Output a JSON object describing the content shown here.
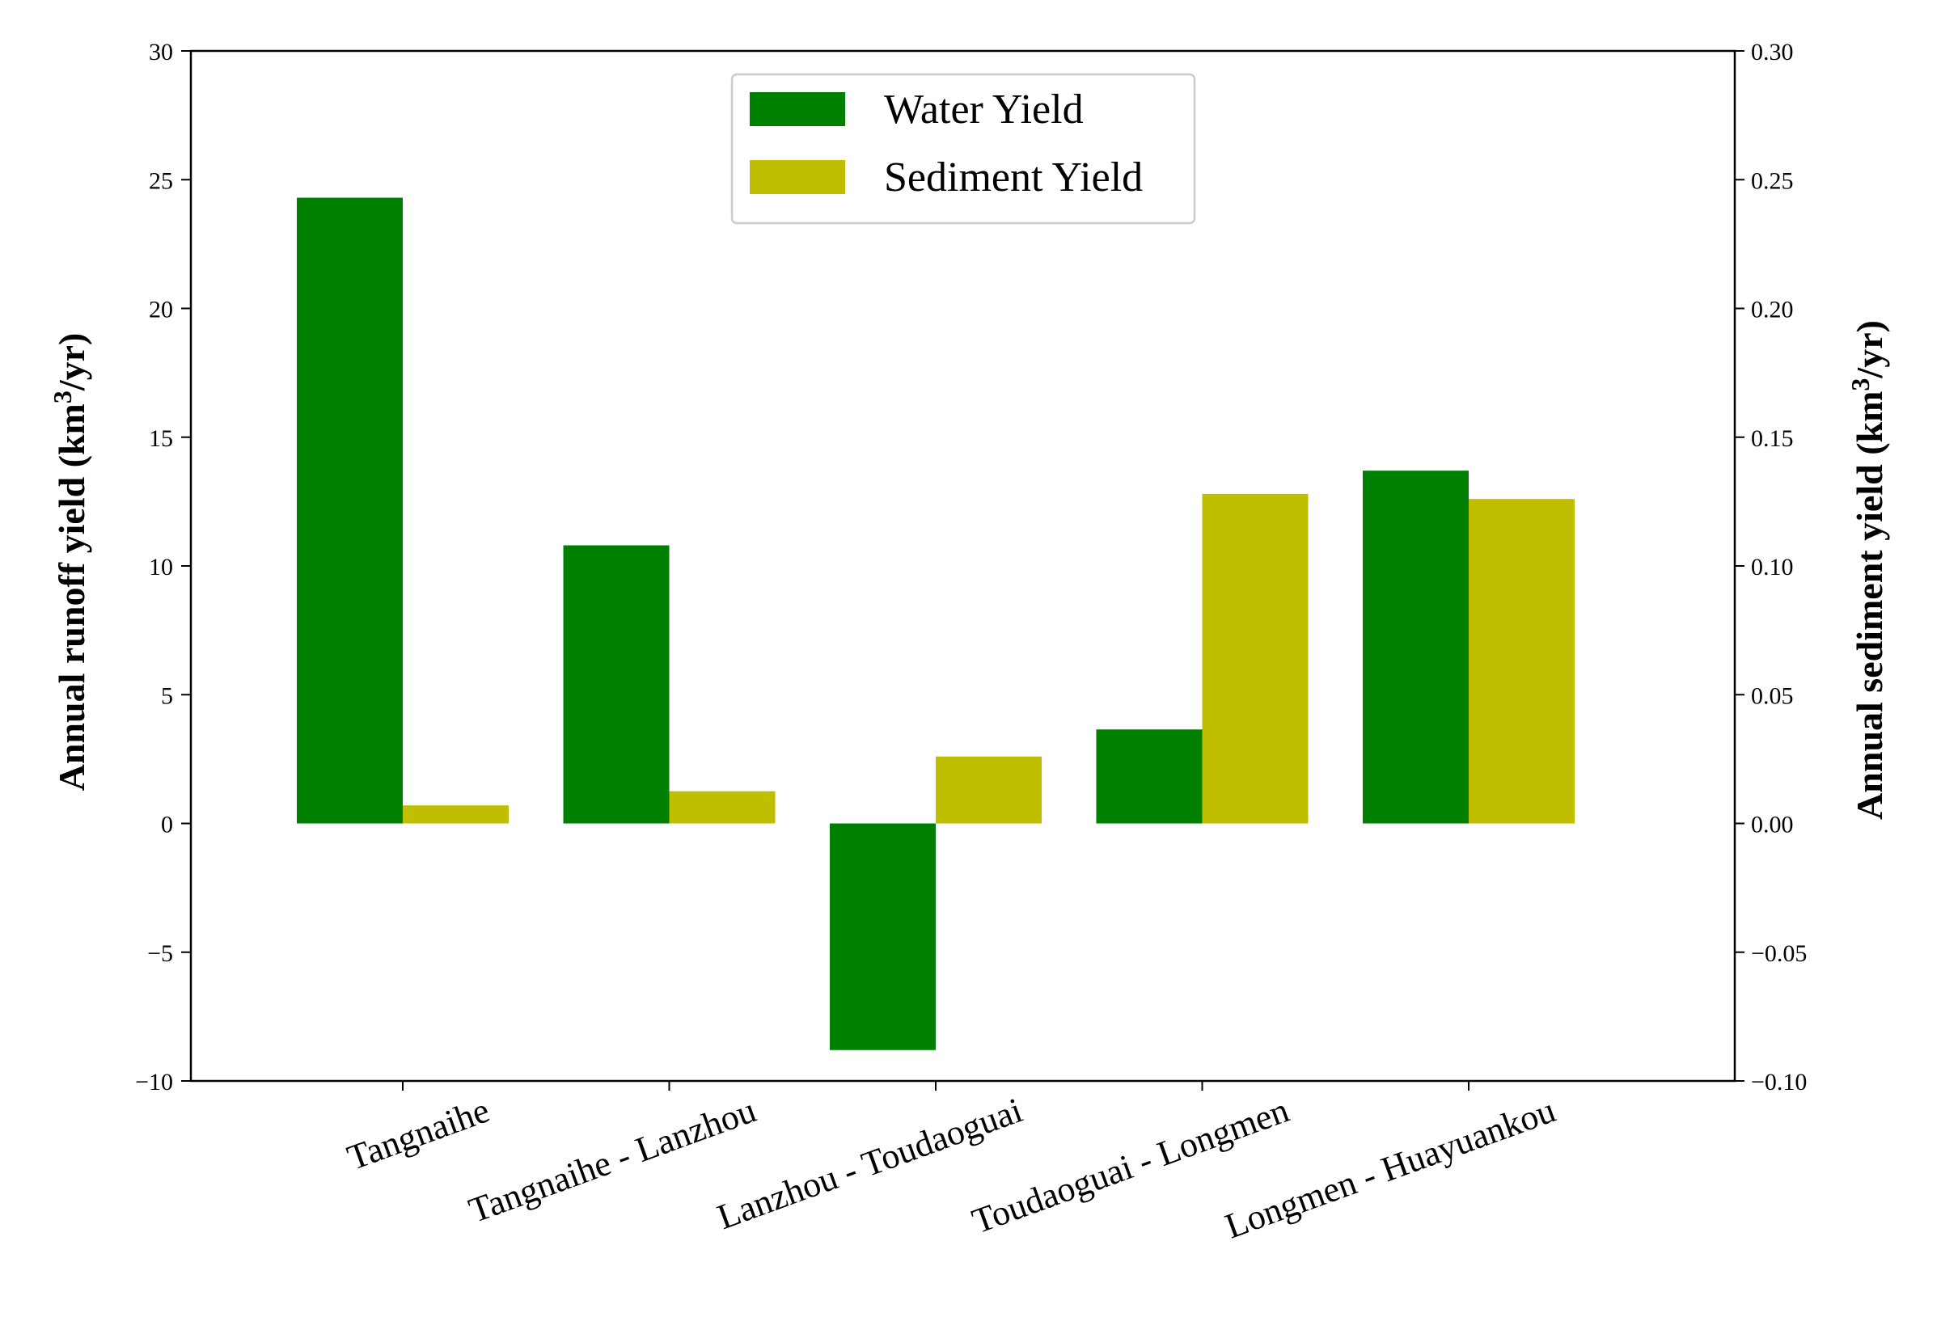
{
  "chart_data": {
    "type": "bar",
    "categories": [
      "Tangnaihe",
      "Tangnaihe - Lanzhou",
      "Lanzhou - Toudaoguai",
      "Toudaoguai - Longmen",
      "Longmen - Huayuankou"
    ],
    "series": [
      {
        "name": "Water Yield",
        "axis": "left",
        "color": "#008000",
        "values": [
          24.3,
          10.8,
          -8.8,
          3.65,
          13.7
        ]
      },
      {
        "name": "Sediment Yield",
        "axis": "right",
        "color": "#bfbf00",
        "values": [
          0.007,
          0.0125,
          0.026,
          0.128,
          0.126
        ]
      }
    ],
    "ylabel_left": {
      "main": "Annual runoff yield (km",
      "sup": "3",
      "tail": "/yr)"
    },
    "ylabel_right": {
      "main": "Annual sediment yield (km",
      "sup": "3",
      "tail": "/yr)"
    },
    "ylim_left": [
      -10,
      30
    ],
    "ylim_right": [
      -0.1,
      0.3
    ],
    "yticks_left": [
      -10,
      -5,
      0,
      5,
      10,
      15,
      20,
      25,
      30
    ],
    "yticks_left_labels": [
      "−10",
      "−5",
      "0",
      "5",
      "10",
      "15",
      "20",
      "25",
      "30"
    ],
    "yticks_right": [
      -0.1,
      -0.05,
      0.0,
      0.05,
      0.1,
      0.15,
      0.2,
      0.25,
      0.3
    ],
    "yticks_right_labels": [
      "−0.10",
      "−0.05",
      "0.00",
      "0.05",
      "0.10",
      "0.15",
      "0.20",
      "0.25",
      "0.30"
    ],
    "grid": false,
    "legend_position": "top-center"
  }
}
